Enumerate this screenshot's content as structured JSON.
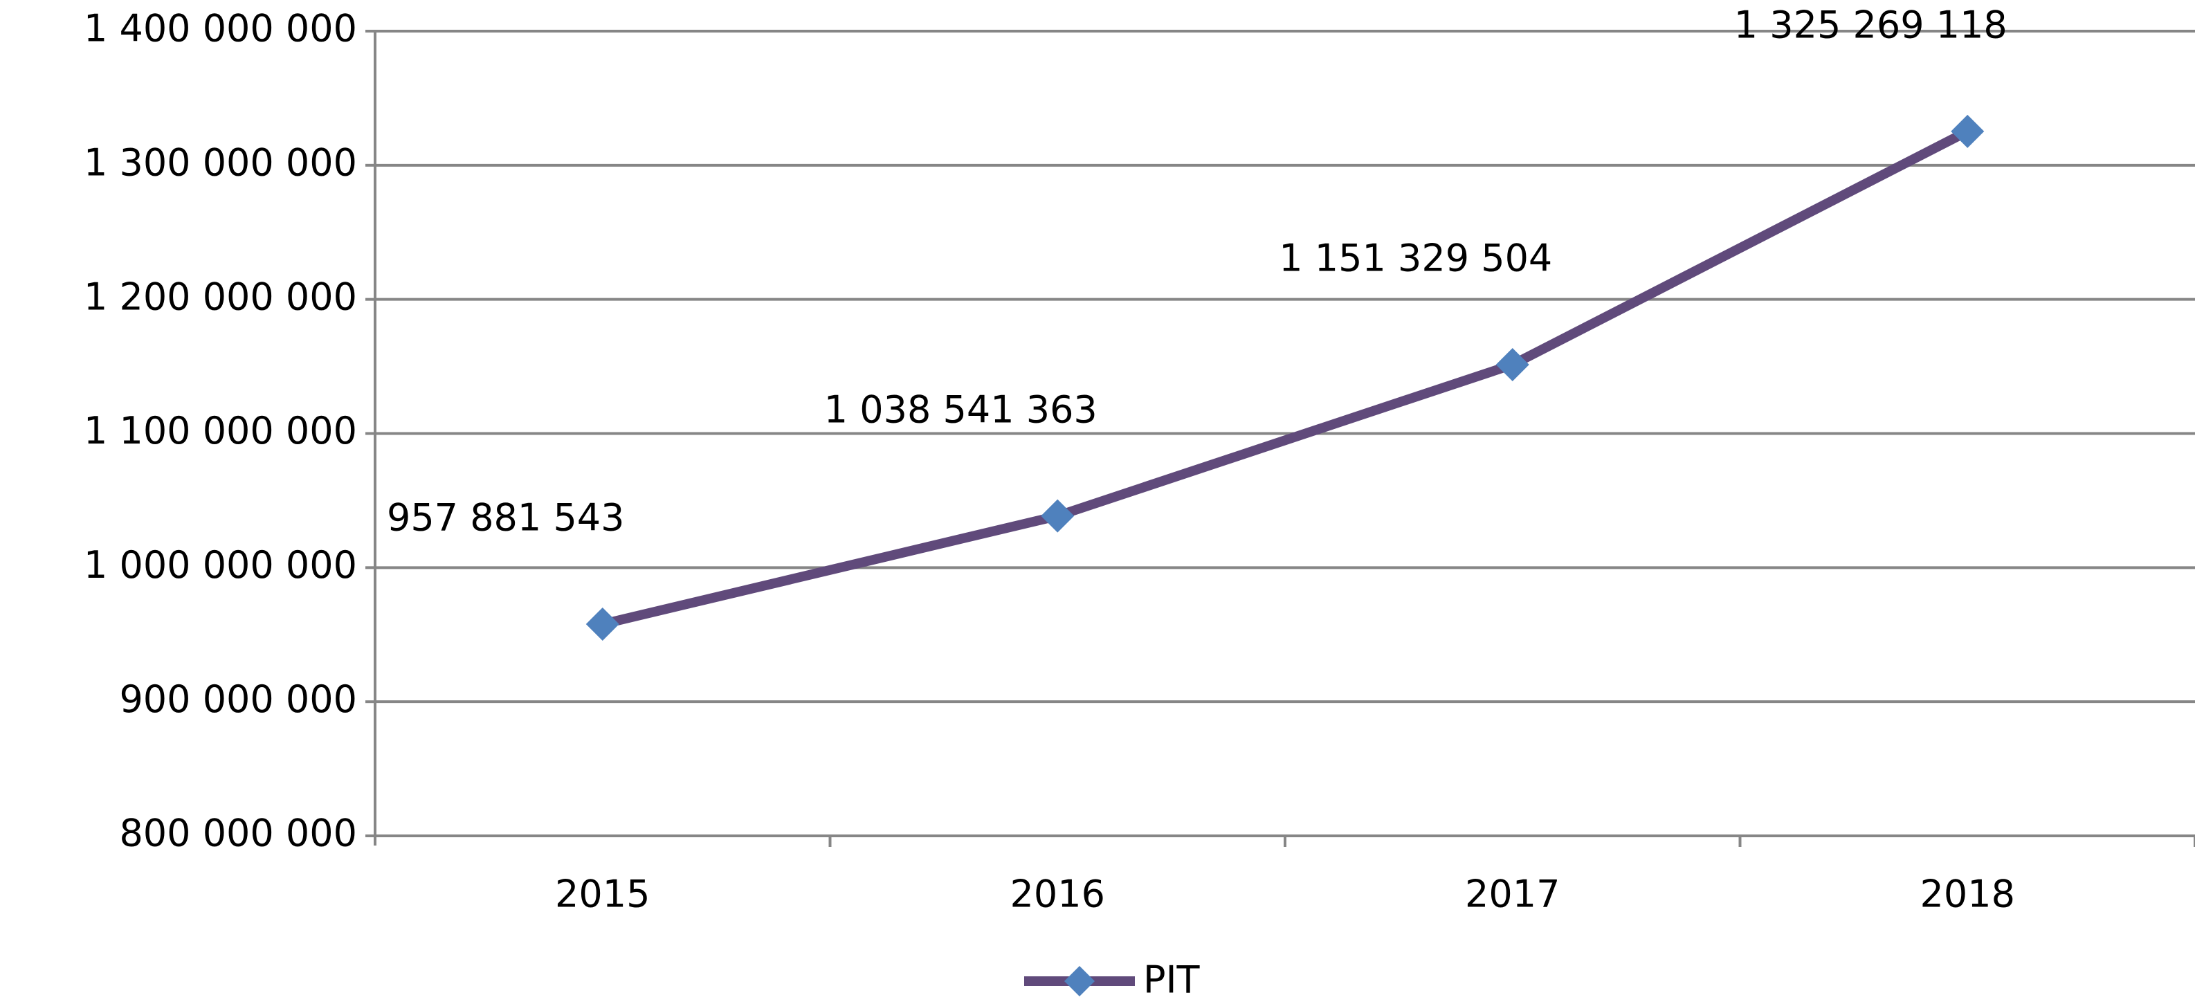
{
  "chart_data": {
    "type": "line",
    "categories": [
      "2015",
      "2016",
      "2017",
      "2018"
    ],
    "series": [
      {
        "name": "PIT",
        "color": "#604a7b",
        "marker_color": "#4f81bd",
        "values": [
          957881543,
          1038541363,
          1151329504,
          1325269118
        ],
        "value_labels": [
          "957 881 543",
          "1 038 541 363",
          "1 151 329 504",
          "1 325 269 118"
        ]
      }
    ],
    "ylim": [
      800000000,
      1400000000
    ],
    "yticks": [
      {
        "value": 800000000,
        "label": "800 000 000"
      },
      {
        "value": 900000000,
        "label": "900 000 000"
      },
      {
        "value": 1000000000,
        "label": "1 000 000 000"
      },
      {
        "value": 1100000000,
        "label": "1 100 000 000"
      },
      {
        "value": 1200000000,
        "label": "1 200 000 000"
      },
      {
        "value": 1300000000,
        "label": "1 300 000 000"
      },
      {
        "value": 1400000000,
        "label": "1 400 000 000"
      }
    ],
    "grid": true,
    "legend": "bottom"
  }
}
